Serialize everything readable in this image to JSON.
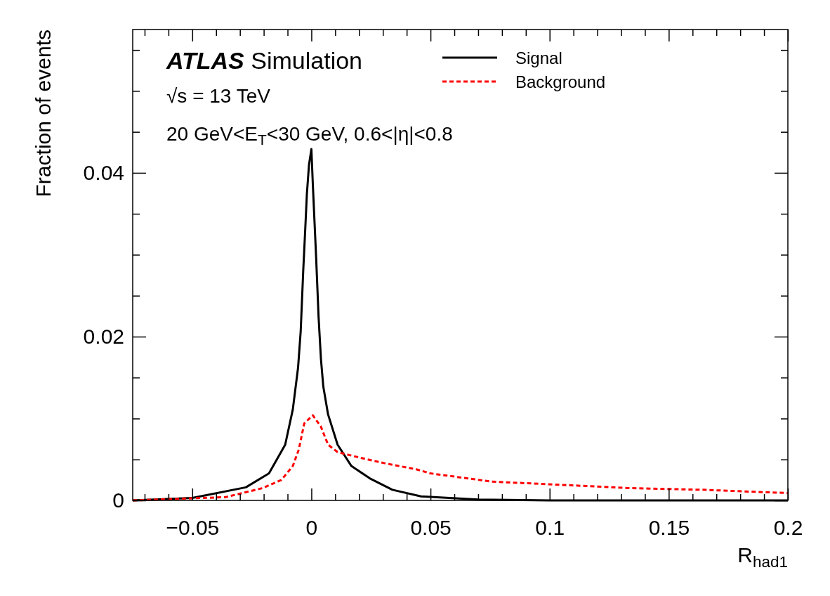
{
  "chart_data": {
    "type": "line",
    "xlabel": "R$_{had1}$",
    "ylabel": "Fraction of events",
    "annotations": [
      "ATLAS Simulation",
      "√s = 13 TeV",
      "20 GeV<E$_{T}$<30 GeV, 0.6<|η|<0.8"
    ],
    "xlim": [
      -0.075,
      0.2
    ],
    "xticks": [
      {
        "value": -0.07,
        "label": null
      },
      {
        "value": -0.06,
        "label": null
      },
      -0.05,
      {
        "value": -0.04,
        "label": null
      },
      {
        "value": -0.03,
        "label": null
      },
      {
        "value": -0.02,
        "label": null
      },
      {
        "value": -0.01,
        "label": null
      },
      0,
      {
        "value": 0.01,
        "label": null
      },
      {
        "value": 0.02,
        "label": null
      },
      {
        "value": 0.03,
        "label": null
      },
      {
        "value": 0.04,
        "label": null
      },
      0.05,
      {
        "value": 0.06,
        "label": null
      },
      {
        "value": 0.07,
        "label": null
      },
      {
        "value": 0.08,
        "label": null
      },
      {
        "value": 0.09,
        "label": null
      },
      0.1,
      {
        "value": 0.11,
        "label": null
      },
      {
        "value": 0.12,
        "label": null
      },
      {
        "value": 0.13,
        "label": null
      },
      {
        "value": 0.14,
        "label": null
      },
      0.15,
      {
        "value": 0.16,
        "label": null
      },
      {
        "value": 0.17,
        "label": null
      },
      {
        "value": 0.18,
        "label": null
      },
      {
        "value": 0.19,
        "label": null
      },
      0.2
    ],
    "ylim": [
      0,
      0.0575
    ],
    "yticks": [
      0,
      {
        "value": 0.005,
        "label": null
      },
      {
        "value": 0.01,
        "label": null
      },
      {
        "value": 0.015,
        "label": null
      },
      0.02,
      {
        "value": 0.025,
        "label": null
      },
      {
        "value": 0.03,
        "label": null
      },
      {
        "value": 0.035,
        "label": null
      },
      0.04,
      {
        "value": 0.045,
        "label": null
      },
      {
        "value": 0.05,
        "label": null
      },
      {
        "value": 0.055,
        "label": null
      }
    ],
    "grid": false,
    "legend": "top right",
    "series": [
      {
        "name": "Signal",
        "color": "#000000",
        "line_style": "solid",
        "x": [
          -0.075,
          -0.05,
          -0.0275,
          -0.0178,
          -0.011,
          -0.0078,
          -0.0056,
          -0.0045,
          -0.0034,
          -0.0026,
          -0.0019,
          -0.001,
          0,
          0.0006,
          0.002,
          0.003,
          0.004,
          0.005,
          0.007,
          0.011,
          0.0168,
          0.0245,
          0.034,
          0.046,
          0.07,
          0.1,
          0.2
        ],
        "values": [
          0,
          0.0003,
          0.0016,
          0.0033,
          0.0068,
          0.0111,
          0.0162,
          0.0206,
          0.0282,
          0.033,
          0.0374,
          0.041,
          0.0429,
          0.0386,
          0.0296,
          0.0225,
          0.0173,
          0.0139,
          0.0105,
          0.0068,
          0.0042,
          0.0027,
          0.0013,
          0.0005,
          0.0001,
          0,
          0
        ]
      },
      {
        "name": "Background",
        "color": "#ff0000",
        "line_style": "dashed",
        "x": [
          -0.075,
          -0.036,
          -0.0205,
          -0.0126,
          -0.0078,
          -0.0053,
          -0.003,
          0.0006,
          0.004,
          0.007,
          0.011,
          0.0206,
          0.0314,
          0.044,
          0.05,
          0.0756,
          0.105,
          0.134,
          0.164,
          0.2
        ],
        "values": [
          0,
          0.0004,
          0.0015,
          0.0025,
          0.0042,
          0.0062,
          0.0094,
          0.0104,
          0.009,
          0.0068,
          0.0059,
          0.0052,
          0.0045,
          0.0038,
          0.0033,
          0.0023,
          0.0019,
          0.0015,
          0.0013,
          0.0009
        ]
      }
    ]
  }
}
